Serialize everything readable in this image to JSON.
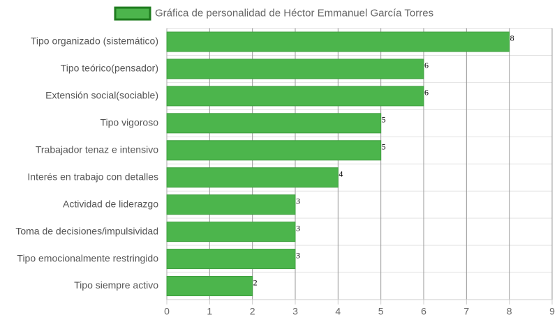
{
  "chart_data": {
    "type": "bar",
    "orientation": "horizontal",
    "categories": [
      "Tipo organizado (sistemático)",
      "Tipo teórico(pensador)",
      "Extensión social(sociable)",
      "Tipo vigoroso",
      "Trabajador tenaz e intensivo",
      "Interés en trabajo con detalles",
      "Actividad de liderazgo",
      "Toma de decisiones/impulsividad",
      "Tipo emocionalmente restringido",
      "Tipo siempre activo"
    ],
    "series": [
      {
        "name": "Gráfica de personalidad de Héctor Emmanuel García Torres",
        "color": "#4cb54c",
        "values": [
          8,
          6,
          6,
          5,
          5,
          4,
          3,
          3,
          3,
          2
        ]
      }
    ],
    "xlim": [
      0,
      9
    ],
    "xticks": [
      0,
      1,
      2,
      3,
      4,
      5,
      6,
      7,
      8,
      9
    ],
    "grid": true,
    "legend": "top"
  }
}
